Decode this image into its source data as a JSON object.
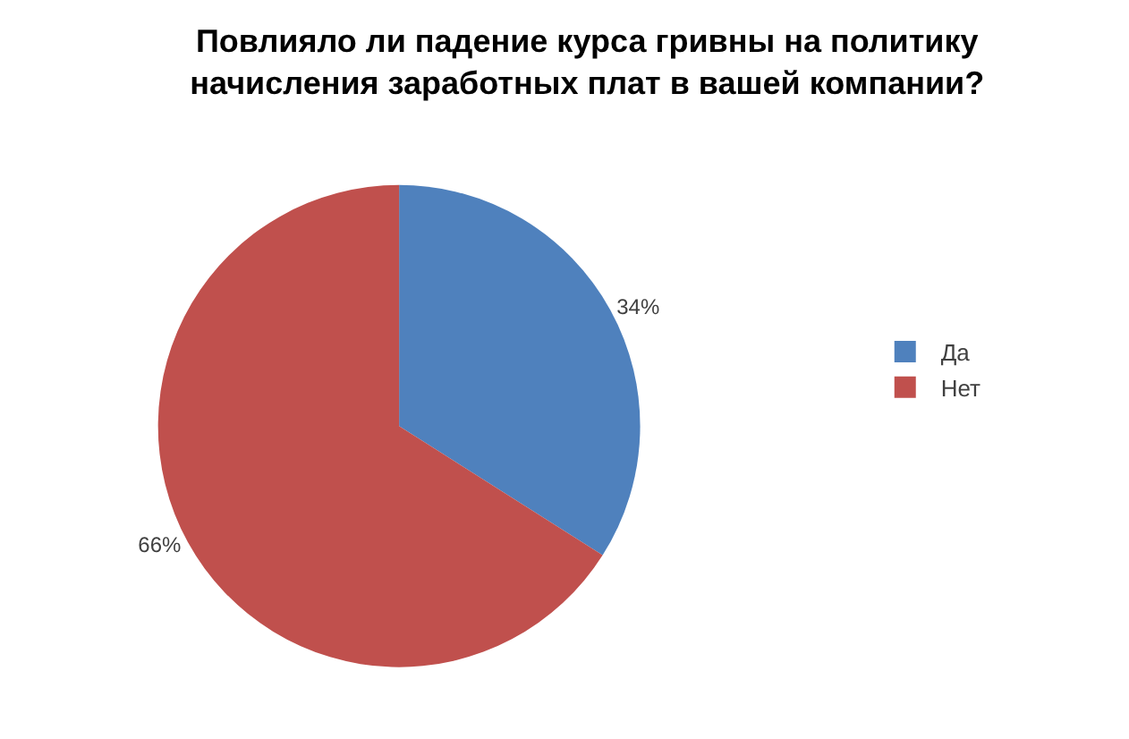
{
  "chart_data": {
    "type": "pie",
    "title": "Повлияло ли падение курса гривны на политику\nначисления заработных плат в вашей компании?",
    "categories": [
      "Да",
      "Нет"
    ],
    "values": [
      34,
      66
    ],
    "colors": [
      "#4f81bd",
      "#c0504d"
    ],
    "value_labels": [
      "34%",
      "66%"
    ],
    "legend": "right"
  }
}
